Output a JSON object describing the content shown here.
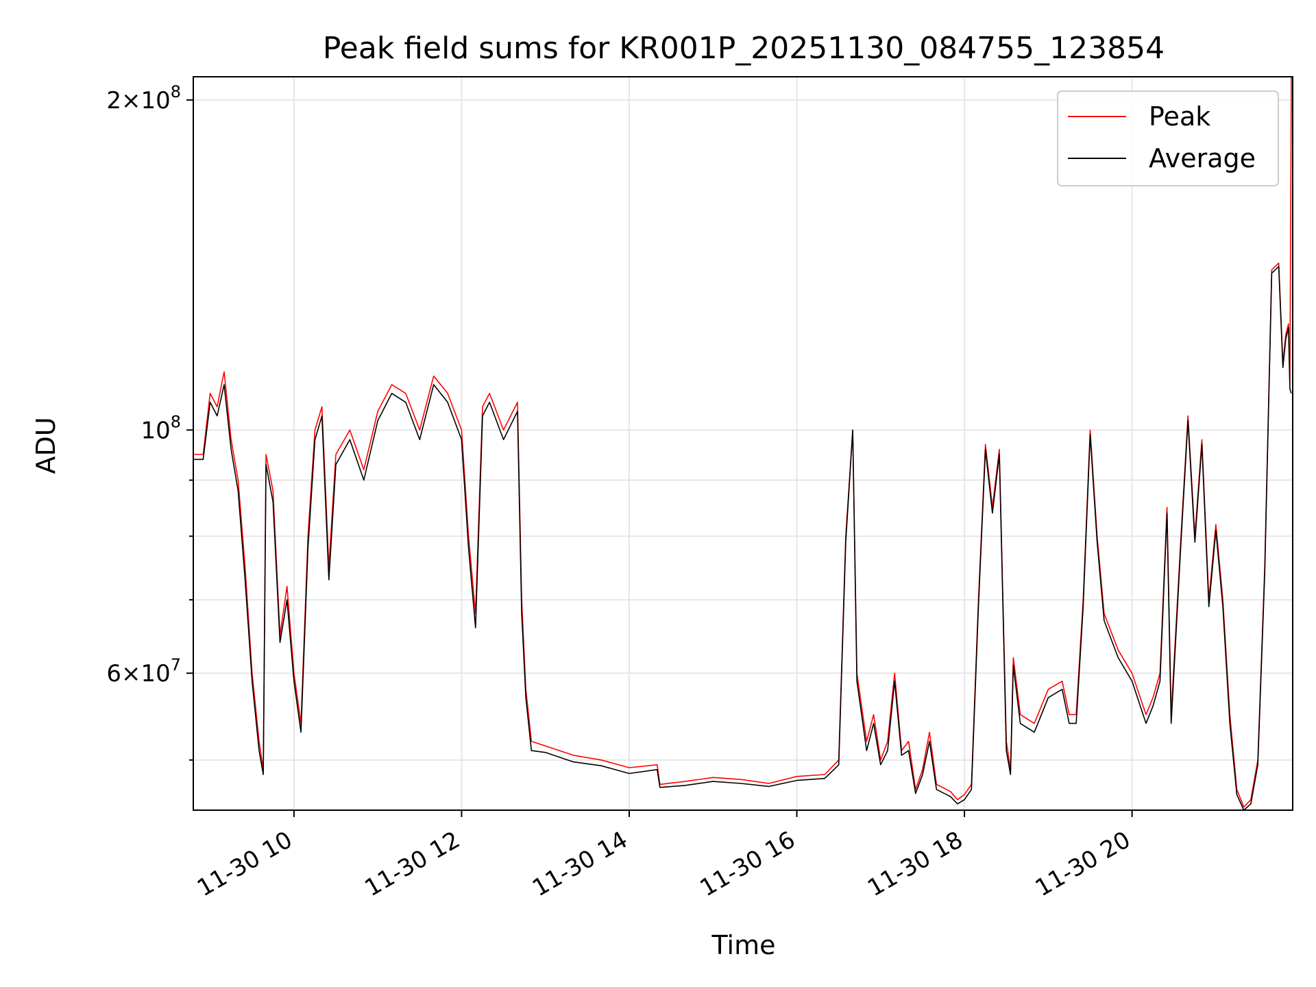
{
  "chart_data": {
    "type": "line",
    "title": "Peak field sums for KR001P_20251130_084755_123854",
    "xlabel": "Time",
    "ylabel": "ADU",
    "yscale": "log",
    "grid": true,
    "legend": {
      "placement": "top-right"
    },
    "x_range": [
      "2025-11-30 08:47:55",
      "2025-11-30 21:55:00"
    ],
    "ylim": [
      45000000,
      210000000
    ],
    "x_ticks": [
      {
        "t": "2025-11-30 10:00",
        "label": "11-30 10"
      },
      {
        "t": "2025-11-30 12:00",
        "label": "11-30 12"
      },
      {
        "t": "2025-11-30 14:00",
        "label": "11-30 14"
      },
      {
        "t": "2025-11-30 16:00",
        "label": "11-30 16"
      },
      {
        "t": "2025-11-30 18:00",
        "label": "11-30 18"
      },
      {
        "t": "2025-11-30 20:00",
        "label": "11-30 20"
      }
    ],
    "y_major_ticks": [
      {
        "v": 60000000,
        "mantissa": "6",
        "exp": "7",
        "times": "×10"
      },
      {
        "v": 100000000,
        "mantissa": "",
        "exp": "8",
        "times": "10"
      },
      {
        "v": 200000000,
        "mantissa": "2",
        "exp": "8",
        "times": "×10"
      }
    ],
    "y_minor_ticks": [
      50000000,
      70000000,
      80000000,
      90000000
    ],
    "series": [
      {
        "name": "Peak",
        "color": "#ff0000",
        "points": [
          [
            "2025-11-30 08:48",
            95
          ],
          [
            "2025-11-30 08:55",
            95
          ],
          [
            "2025-11-30 09:00",
            108
          ],
          [
            "2025-11-30 09:05",
            105
          ],
          [
            "2025-11-30 09:10",
            113
          ],
          [
            "2025-11-30 09:15",
            98
          ],
          [
            "2025-11-30 09:20",
            90
          ],
          [
            "2025-11-30 09:25",
            75
          ],
          [
            "2025-11-30 09:30",
            60
          ],
          [
            "2025-11-30 09:35",
            52
          ],
          [
            "2025-11-30 09:38",
            49
          ],
          [
            "2025-11-30 09:40",
            95
          ],
          [
            "2025-11-30 09:45",
            88
          ],
          [
            "2025-11-30 09:50",
            65
          ],
          [
            "2025-11-30 09:55",
            72
          ],
          [
            "2025-11-30 10:00",
            60
          ],
          [
            "2025-11-30 10:05",
            54
          ],
          [
            "2025-11-30 10:10",
            80
          ],
          [
            "2025-11-30 10:15",
            100
          ],
          [
            "2025-11-30 10:20",
            105
          ],
          [
            "2025-11-30 10:25",
            75
          ],
          [
            "2025-11-30 10:30",
            95
          ],
          [
            "2025-11-30 10:40",
            100
          ],
          [
            "2025-11-30 10:50",
            92
          ],
          [
            "2025-11-30 11:00",
            104
          ],
          [
            "2025-11-30 11:10",
            110
          ],
          [
            "2025-11-30 11:20",
            108
          ],
          [
            "2025-11-30 11:30",
            100
          ],
          [
            "2025-11-30 11:40",
            112
          ],
          [
            "2025-11-30 11:50",
            108
          ],
          [
            "2025-11-30 12:00",
            100
          ],
          [
            "2025-11-30 12:05",
            80
          ],
          [
            "2025-11-30 12:10",
            68
          ],
          [
            "2025-11-30 12:15",
            105
          ],
          [
            "2025-11-30 12:20",
            108
          ],
          [
            "2025-11-30 12:30",
            100
          ],
          [
            "2025-11-30 12:40",
            106
          ],
          [
            "2025-11-30 12:43",
            70
          ],
          [
            "2025-11-30 12:46",
            58
          ],
          [
            "2025-11-30 12:50",
            52
          ],
          [
            "2025-11-30 13:00",
            51.5
          ],
          [
            "2025-11-30 13:20",
            50.5
          ],
          [
            "2025-11-30 13:40",
            50
          ],
          [
            "2025-11-30 14:00",
            49.2
          ],
          [
            "2025-11-30 14:20",
            49.5
          ],
          [
            "2025-11-30 14:22",
            47.5
          ],
          [
            "2025-11-30 14:40",
            47.8
          ],
          [
            "2025-11-30 15:00",
            48.2
          ],
          [
            "2025-11-30 15:20",
            48
          ],
          [
            "2025-11-30 15:40",
            47.6
          ],
          [
            "2025-11-30 16:00",
            48.3
          ],
          [
            "2025-11-30 16:20",
            48.5
          ],
          [
            "2025-11-30 16:30",
            50
          ],
          [
            "2025-11-30 16:35",
            80
          ],
          [
            "2025-11-30 16:40",
            100
          ],
          [
            "2025-11-30 16:43",
            60
          ],
          [
            "2025-11-30 16:50",
            52
          ],
          [
            "2025-11-30 16:55",
            55
          ],
          [
            "2025-11-30 17:00",
            50
          ],
          [
            "2025-11-30 17:05",
            52
          ],
          [
            "2025-11-30 17:10",
            60
          ],
          [
            "2025-11-30 17:15",
            51
          ],
          [
            "2025-11-30 17:20",
            52
          ],
          [
            "2025-11-30 17:25",
            47
          ],
          [
            "2025-11-30 17:30",
            49
          ],
          [
            "2025-11-30 17:35",
            53
          ],
          [
            "2025-11-30 17:40",
            47.5
          ],
          [
            "2025-11-30 17:50",
            46.8
          ],
          [
            "2025-11-30 17:55",
            46
          ],
          [
            "2025-11-30 18:00",
            46.5
          ],
          [
            "2025-11-30 18:05",
            47.5
          ],
          [
            "2025-11-30 18:10",
            70
          ],
          [
            "2025-11-30 18:15",
            97
          ],
          [
            "2025-11-30 18:20",
            85
          ],
          [
            "2025-11-30 18:25",
            96
          ],
          [
            "2025-11-30 18:30",
            52
          ],
          [
            "2025-11-30 18:33",
            49
          ],
          [
            "2025-11-30 18:35",
            62
          ],
          [
            "2025-11-30 18:40",
            55
          ],
          [
            "2025-11-30 18:50",
            54
          ],
          [
            "2025-11-30 19:00",
            58
          ],
          [
            "2025-11-30 19:10",
            59
          ],
          [
            "2025-11-30 19:15",
            55
          ],
          [
            "2025-11-30 19:20",
            55
          ],
          [
            "2025-11-30 19:25",
            70
          ],
          [
            "2025-11-30 19:30",
            100
          ],
          [
            "2025-11-30 19:35",
            80
          ],
          [
            "2025-11-30 19:40",
            68
          ],
          [
            "2025-11-30 19:50",
            63
          ],
          [
            "2025-11-30 20:00",
            60
          ],
          [
            "2025-11-30 20:10",
            55
          ],
          [
            "2025-11-30 20:15",
            57
          ],
          [
            "2025-11-30 20:20",
            60
          ],
          [
            "2025-11-30 20:25",
            85
          ],
          [
            "2025-11-30 20:28",
            55
          ],
          [
            "2025-11-30 20:35",
            80
          ],
          [
            "2025-11-30 20:40",
            103
          ],
          [
            "2025-11-30 20:45",
            80
          ],
          [
            "2025-11-30 20:50",
            98
          ],
          [
            "2025-11-30 20:55",
            70
          ],
          [
            "2025-11-30 21:00",
            82
          ],
          [
            "2025-11-30 21:05",
            70
          ],
          [
            "2025-11-30 21:10",
            55
          ],
          [
            "2025-11-30 21:15",
            47
          ],
          [
            "2025-11-30 21:20",
            45.3
          ],
          [
            "2025-11-30 21:25",
            46
          ],
          [
            "2025-11-30 21:30",
            50
          ],
          [
            "2025-11-30 21:35",
            75
          ],
          [
            "2025-11-30 21:40",
            140
          ],
          [
            "2025-11-30 21:45",
            142
          ],
          [
            "2025-11-30 21:48",
            115
          ],
          [
            "2025-11-30 21:50",
            122
          ],
          [
            "2025-11-30 21:52",
            125
          ],
          [
            "2025-11-30 21:53",
            110
          ],
          [
            "2025-11-30 21:54",
            210
          ]
        ]
      },
      {
        "name": "Average",
        "color": "#000000",
        "points": [
          [
            "2025-11-30 08:48",
            94
          ],
          [
            "2025-11-30 08:55",
            94
          ],
          [
            "2025-11-30 09:00",
            106
          ],
          [
            "2025-11-30 09:05",
            103
          ],
          [
            "2025-11-30 09:10",
            110
          ],
          [
            "2025-11-30 09:15",
            96
          ],
          [
            "2025-11-30 09:20",
            88
          ],
          [
            "2025-11-30 09:25",
            73
          ],
          [
            "2025-11-30 09:30",
            59
          ],
          [
            "2025-11-30 09:35",
            51
          ],
          [
            "2025-11-30 09:38",
            48.5
          ],
          [
            "2025-11-30 09:40",
            93
          ],
          [
            "2025-11-30 09:45",
            86
          ],
          [
            "2025-11-30 09:50",
            64
          ],
          [
            "2025-11-30 09:55",
            70
          ],
          [
            "2025-11-30 10:00",
            59
          ],
          [
            "2025-11-30 10:05",
            53
          ],
          [
            "2025-11-30 10:10",
            78
          ],
          [
            "2025-11-30 10:15",
            98
          ],
          [
            "2025-11-30 10:20",
            103
          ],
          [
            "2025-11-30 10:25",
            73
          ],
          [
            "2025-11-30 10:30",
            93
          ],
          [
            "2025-11-30 10:40",
            98
          ],
          [
            "2025-11-30 10:50",
            90
          ],
          [
            "2025-11-30 11:00",
            102
          ],
          [
            "2025-11-30 11:10",
            108
          ],
          [
            "2025-11-30 11:20",
            106
          ],
          [
            "2025-11-30 11:30",
            98
          ],
          [
            "2025-11-30 11:40",
            110
          ],
          [
            "2025-11-30 11:50",
            106
          ],
          [
            "2025-11-30 12:00",
            98
          ],
          [
            "2025-11-30 12:05",
            78
          ],
          [
            "2025-11-30 12:10",
            66
          ],
          [
            "2025-11-30 12:15",
            103
          ],
          [
            "2025-11-30 12:20",
            106
          ],
          [
            "2025-11-30 12:30",
            98
          ],
          [
            "2025-11-30 12:40",
            104
          ],
          [
            "2025-11-30 12:43",
            68
          ],
          [
            "2025-11-30 12:46",
            57
          ],
          [
            "2025-11-30 12:50",
            51
          ],
          [
            "2025-11-30 13:00",
            50.8
          ],
          [
            "2025-11-30 13:20",
            49.8
          ],
          [
            "2025-11-30 13:40",
            49.4
          ],
          [
            "2025-11-30 14:00",
            48.6
          ],
          [
            "2025-11-30 14:20",
            49
          ],
          [
            "2025-11-30 14:22",
            47.2
          ],
          [
            "2025-11-30 14:40",
            47.4
          ],
          [
            "2025-11-30 15:00",
            47.8
          ],
          [
            "2025-11-30 15:20",
            47.6
          ],
          [
            "2025-11-30 15:40",
            47.3
          ],
          [
            "2025-11-30 16:00",
            47.9
          ],
          [
            "2025-11-30 16:20",
            48.1
          ],
          [
            "2025-11-30 16:30",
            49.5
          ],
          [
            "2025-11-30 16:35",
            79
          ],
          [
            "2025-11-30 16:40",
            100
          ],
          [
            "2025-11-30 16:43",
            59
          ],
          [
            "2025-11-30 16:50",
            51
          ],
          [
            "2025-11-30 16:55",
            54
          ],
          [
            "2025-11-30 17:00",
            49.5
          ],
          [
            "2025-11-30 17:05",
            51
          ],
          [
            "2025-11-30 17:10",
            59
          ],
          [
            "2025-11-30 17:15",
            50.5
          ],
          [
            "2025-11-30 17:20",
            51
          ],
          [
            "2025-11-30 17:25",
            46.6
          ],
          [
            "2025-11-30 17:30",
            48.5
          ],
          [
            "2025-11-30 17:35",
            52
          ],
          [
            "2025-11-30 17:40",
            47
          ],
          [
            "2025-11-30 17:50",
            46.3
          ],
          [
            "2025-11-30 17:55",
            45.6
          ],
          [
            "2025-11-30 18:00",
            46
          ],
          [
            "2025-11-30 18:05",
            47
          ],
          [
            "2025-11-30 18:10",
            69
          ],
          [
            "2025-11-30 18:15",
            96
          ],
          [
            "2025-11-30 18:20",
            84
          ],
          [
            "2025-11-30 18:25",
            95
          ],
          [
            "2025-11-30 18:30",
            51
          ],
          [
            "2025-11-30 18:33",
            48.5
          ],
          [
            "2025-11-30 18:35",
            61
          ],
          [
            "2025-11-30 18:40",
            54
          ],
          [
            "2025-11-30 18:50",
            53
          ],
          [
            "2025-11-30 19:00",
            57
          ],
          [
            "2025-11-30 19:10",
            58
          ],
          [
            "2025-11-30 19:15",
            54
          ],
          [
            "2025-11-30 19:20",
            54
          ],
          [
            "2025-11-30 19:25",
            69
          ],
          [
            "2025-11-30 19:30",
            99
          ],
          [
            "2025-11-30 19:35",
            79
          ],
          [
            "2025-11-30 19:40",
            67
          ],
          [
            "2025-11-30 19:50",
            62
          ],
          [
            "2025-11-30 20:00",
            59
          ],
          [
            "2025-11-30 20:10",
            54
          ],
          [
            "2025-11-30 20:15",
            56
          ],
          [
            "2025-11-30 20:20",
            59
          ],
          [
            "2025-11-30 20:25",
            84
          ],
          [
            "2025-11-30 20:28",
            54
          ],
          [
            "2025-11-30 20:35",
            79
          ],
          [
            "2025-11-30 20:40",
            102
          ],
          [
            "2025-11-30 20:45",
            79
          ],
          [
            "2025-11-30 20:50",
            97
          ],
          [
            "2025-11-30 20:55",
            69
          ],
          [
            "2025-11-30 21:00",
            81
          ],
          [
            "2025-11-30 21:05",
            69
          ],
          [
            "2025-11-30 21:10",
            54
          ],
          [
            "2025-11-30 21:15",
            46.5
          ],
          [
            "2025-11-30 21:20",
            45
          ],
          [
            "2025-11-30 21:25",
            45.6
          ],
          [
            "2025-11-30 21:30",
            49.5
          ],
          [
            "2025-11-30 21:35",
            74
          ],
          [
            "2025-11-30 21:40",
            139
          ],
          [
            "2025-11-30 21:45",
            141
          ],
          [
            "2025-11-30 21:48",
            114
          ],
          [
            "2025-11-30 21:50",
            121
          ],
          [
            "2025-11-30 21:52",
            124
          ],
          [
            "2025-11-30 21:53",
            109
          ],
          [
            "2025-11-30 21:54",
            108
          ]
        ]
      }
    ]
  }
}
